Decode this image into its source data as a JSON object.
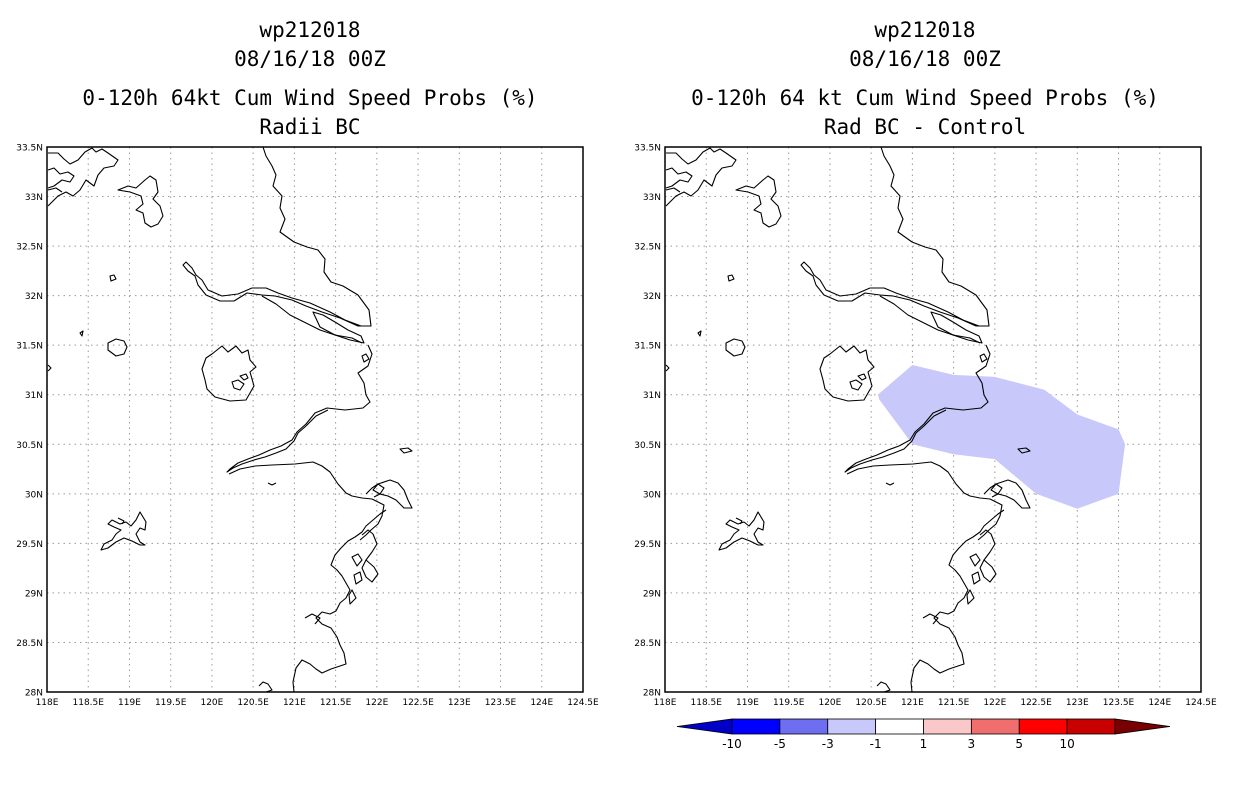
{
  "left_panel": {
    "title_line1": "wp212018",
    "title_line2": "08/16/18 00Z",
    "title_line3": "0-120h 64kt Cum Wind Speed Probs (%)",
    "title_line4": "Radii BC"
  },
  "right_panel": {
    "title_line1": "wp212018",
    "title_line2": "08/16/18 00Z",
    "title_line3": "0-120h 64 kt Cum Wind Speed Probs (%)",
    "title_line4": "Rad BC - Control"
  },
  "map_axes": {
    "lon_labels": [
      "118E",
      "118.5E",
      "119E",
      "119.5E",
      "120E",
      "120.5E",
      "121E",
      "121.5E",
      "122E",
      "122.5E",
      "123E",
      "123.5E",
      "124E",
      "124.5E"
    ],
    "lat_labels": [
      "33.5N",
      "33N",
      "32.5N",
      "32N",
      "31.5N",
      "31N",
      "30.5N",
      "30N",
      "29.5N",
      "29N",
      "28.5N",
      "28N"
    ],
    "lon_range": [
      118,
      124.5
    ],
    "lat_range": [
      28,
      33.5
    ]
  },
  "difference_region": {
    "value_class": "-3 to -1",
    "color": "#c8c8fa",
    "polygon_lonlat": [
      [
        120.58,
        31.0
      ],
      [
        121.0,
        31.3
      ],
      [
        121.5,
        31.2
      ],
      [
        122.0,
        31.18
      ],
      [
        122.6,
        31.05
      ],
      [
        123.0,
        30.8
      ],
      [
        123.5,
        30.65
      ],
      [
        123.58,
        30.5
      ],
      [
        123.5,
        30.0
      ],
      [
        123.0,
        29.85
      ],
      [
        122.5,
        30.0
      ],
      [
        122.0,
        30.35
      ],
      [
        121.5,
        30.4
      ],
      [
        121.0,
        30.5
      ],
      [
        120.6,
        30.95
      ]
    ]
  },
  "colorbar": {
    "labels": [
      "-10",
      "-5",
      "-3",
      "-1",
      "1",
      "3",
      "5",
      "10"
    ],
    "colors": [
      "#0000c8",
      "#0000ff",
      "#6e6ef0",
      "#c8c8fa",
      "#ffffff",
      "#fac8c8",
      "#f06e6e",
      "#ff0000",
      "#c80000",
      "#780000"
    ]
  }
}
